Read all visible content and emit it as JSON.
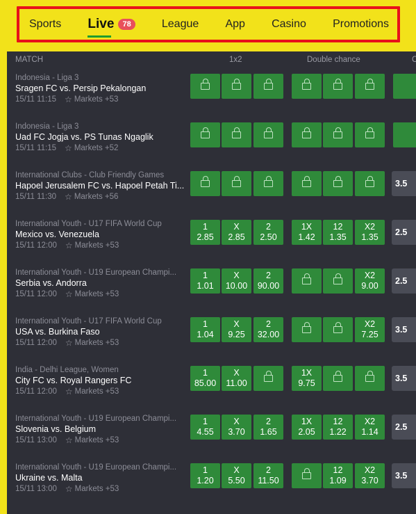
{
  "nav": {
    "items": [
      "Sports",
      "Live",
      "League",
      "App",
      "Casino",
      "Promotions"
    ],
    "live_badge": "78"
  },
  "headers": {
    "match": "MATCH",
    "onextwo": "1x2",
    "double_chance": "Double chance",
    "next_cut": "C"
  },
  "matches": [
    {
      "league": "Indonesia - Liga 3",
      "teams": "Sragen FC vs. Persip Pekalongan",
      "time": "15/11 11:15",
      "markets": "Markets +53",
      "odds": [
        null,
        null,
        null,
        null,
        null,
        null
      ],
      "total": ""
    },
    {
      "league": "Indonesia - Liga 3",
      "teams": "Uad FC Jogja vs. PS Tunas Ngaglik",
      "time": "15/11 11:15",
      "markets": "Markets +52",
      "odds": [
        null,
        null,
        null,
        null,
        null,
        null
      ],
      "total": ""
    },
    {
      "league": "International Clubs - Club Friendly Games",
      "teams": "Hapoel Jerusalem FC vs. Hapoel Petah Ti...",
      "time": "15/11 11:30",
      "markets": "Markets +56",
      "odds": [
        null,
        null,
        null,
        null,
        null,
        null
      ],
      "total": "3.5"
    },
    {
      "league": "International Youth - U17 FIFA World Cup",
      "teams": "Mexico vs. Venezuela",
      "time": "15/11 12:00",
      "markets": "Markets +53",
      "odds": [
        [
          "1",
          "2.85"
        ],
        [
          "X",
          "2.85"
        ],
        [
          "2",
          "2.50"
        ],
        [
          "1X",
          "1.42"
        ],
        [
          "12",
          "1.35"
        ],
        [
          "X2",
          "1.35"
        ]
      ],
      "total": "2.5"
    },
    {
      "league": "International Youth - U19 European Champi...",
      "teams": "Serbia vs. Andorra",
      "time": "15/11 12:00",
      "markets": "Markets +53",
      "odds": [
        [
          "1",
          "1.01"
        ],
        [
          "X",
          "10.00"
        ],
        [
          "2",
          "90.00"
        ],
        null,
        null,
        [
          "X2",
          "9.00"
        ]
      ],
      "total": "2.5"
    },
    {
      "league": "International Youth - U17 FIFA World Cup",
      "teams": "USA vs. Burkina Faso",
      "time": "15/11 12:00",
      "markets": "Markets +53",
      "odds": [
        [
          "1",
          "1.04"
        ],
        [
          "X",
          "9.25"
        ],
        [
          "2",
          "32.00"
        ],
        null,
        null,
        [
          "X2",
          "7.25"
        ]
      ],
      "total": "3.5"
    },
    {
      "league": "India - Delhi League, Women",
      "teams": "City FC vs. Royal Rangers FC",
      "time": "15/11 12:00",
      "markets": "Markets +53",
      "odds": [
        [
          "1",
          "85.00"
        ],
        [
          "X",
          "11.00"
        ],
        null,
        [
          "1X",
          "9.75"
        ],
        null,
        null
      ],
      "total": "3.5"
    },
    {
      "league": "International Youth - U19 European Champi...",
      "teams": "Slovenia vs. Belgium",
      "time": "15/11 13:00",
      "markets": "Markets +53",
      "odds": [
        [
          "1",
          "4.55"
        ],
        [
          "X",
          "3.70"
        ],
        [
          "2",
          "1.65"
        ],
        [
          "1X",
          "2.05"
        ],
        [
          "12",
          "1.22"
        ],
        [
          "X2",
          "1.14"
        ]
      ],
      "total": "2.5"
    },
    {
      "league": "International Youth - U19 European Champi...",
      "teams": "Ukraine vs. Malta",
      "time": "15/11 13:00",
      "markets": "Markets +53",
      "odds": [
        [
          "1",
          "1.20"
        ],
        [
          "X",
          "5.50"
        ],
        [
          "2",
          "11.50"
        ],
        null,
        [
          "12",
          "1.09"
        ],
        [
          "X2",
          "3.70"
        ]
      ],
      "total": "3.5"
    }
  ]
}
